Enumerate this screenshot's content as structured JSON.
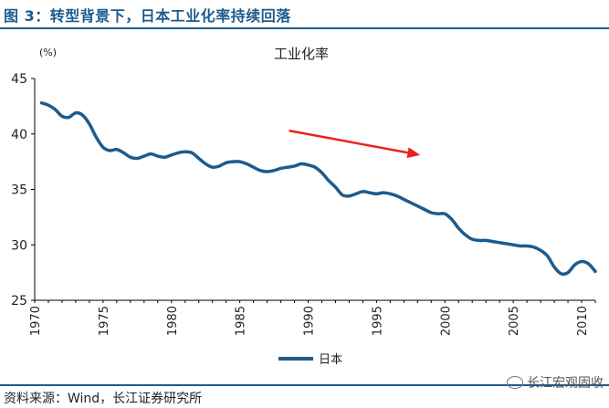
{
  "figure": {
    "title": "图 3：转型背景下，日本工业化率持续回落",
    "source": "资料来源：Wind，长江证券研究所",
    "watermark": "长江宏观固收"
  },
  "colors": {
    "title": "#1d5b8e",
    "series": "#1d5b8e",
    "arrow": "#e8231f"
  },
  "chart_data": {
    "type": "line",
    "title": "工业化率",
    "ylabel": "(%)",
    "xlabel": "",
    "xlim": [
      1970,
      2011
    ],
    "ylim": [
      25,
      45
    ],
    "xticks": [
      1970,
      1975,
      1980,
      1985,
      1990,
      1995,
      2000,
      2005,
      2010
    ],
    "yticks": [
      25,
      30,
      35,
      40,
      45
    ],
    "grid": false,
    "legend": "bottom-center",
    "series": [
      {
        "name": "日本",
        "x": [
          1970.5,
          1971,
          1971.5,
          1972,
          1972.5,
          1973,
          1973.5,
          1974,
          1974.5,
          1975,
          1975.5,
          1976,
          1976.5,
          1977,
          1977.5,
          1978,
          1978.5,
          1979,
          1979.5,
          1980,
          1980.5,
          1981,
          1981.5,
          1982,
          1982.5,
          1983,
          1983.5,
          1984,
          1984.5,
          1985,
          1985.5,
          1986,
          1986.5,
          1987,
          1987.5,
          1988,
          1988.5,
          1989,
          1989.5,
          1990,
          1990.5,
          1991,
          1991.5,
          1992,
          1992.5,
          1993,
          1993.5,
          1994,
          1994.5,
          1995,
          1995.5,
          1996,
          1996.5,
          1997,
          1997.5,
          1998,
          1998.5,
          1999,
          1999.5,
          2000,
          2000.5,
          2001,
          2001.5,
          2002,
          2002.5,
          2003,
          2003.5,
          2004,
          2004.5,
          2005,
          2005.5,
          2006,
          2006.5,
          2007,
          2007.5,
          2008,
          2008.5,
          2009,
          2009.5,
          2010,
          2010.5,
          2011
        ],
        "values": [
          42.8,
          42.6,
          42.2,
          41.6,
          41.5,
          41.9,
          41.7,
          40.9,
          39.7,
          38.8,
          38.5,
          38.6,
          38.3,
          37.9,
          37.8,
          38.0,
          38.2,
          38.0,
          37.9,
          38.1,
          38.3,
          38.4,
          38.3,
          37.8,
          37.3,
          37.0,
          37.1,
          37.4,
          37.5,
          37.5,
          37.3,
          37.0,
          36.7,
          36.6,
          36.7,
          36.9,
          37.0,
          37.1,
          37.3,
          37.2,
          37.0,
          36.5,
          35.8,
          35.2,
          34.5,
          34.4,
          34.6,
          34.8,
          34.7,
          34.6,
          34.7,
          34.6,
          34.4,
          34.1,
          33.8,
          33.5,
          33.2,
          32.9,
          32.8,
          32.8,
          32.3,
          31.5,
          30.9,
          30.5,
          30.4,
          30.4,
          30.3,
          30.2,
          30.1,
          30.0,
          29.9,
          29.9,
          29.8,
          29.5,
          29.0,
          28.0,
          27.4,
          27.5,
          28.2,
          28.5,
          28.3,
          27.6
        ]
      }
    ],
    "annotations": [
      {
        "type": "arrow",
        "from": [
          1988.6,
          40.3
        ],
        "to": [
          1998.2,
          38.1
        ]
      }
    ]
  }
}
